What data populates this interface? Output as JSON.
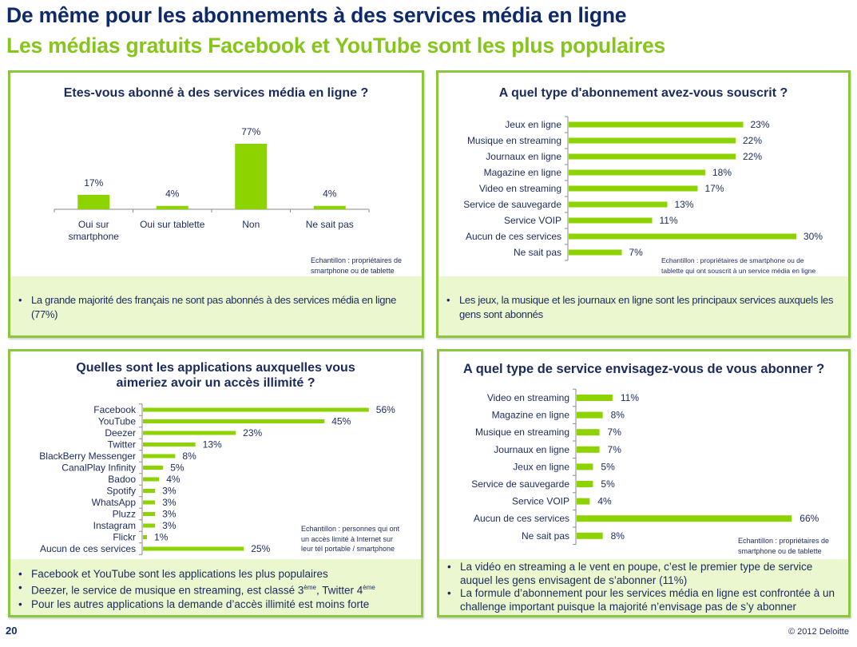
{
  "header": {
    "title": "De même pour les abonnements à des services média en ligne",
    "subtitle": "Les médias gratuits Facebook et YouTube sont les plus populaires"
  },
  "colors": {
    "bar": "#8cd300",
    "panel_border": "#8cc63f",
    "note_bg": "#eaf7cf",
    "title_blue": "#0f2a6b",
    "subtitle_green": "#86c51a"
  },
  "panels": {
    "top_left": {
      "sample": [
        "Echantillon : propriétaires de",
        "smartphone ou de tablette"
      ],
      "bullets": [
        "La grande majorité des français ne sont pas abonnés à des services média en ligne (77%)"
      ]
    },
    "top_right": {
      "sample": [
        "Echantillon : propriétaires de smartphone ou de",
        "tablette qui ont souscrit à un service média en ligne"
      ],
      "bullets": [
        "Les jeux, la musique et les journaux en ligne sont les principaux services auxquels les gens sont abonnés"
      ]
    },
    "bottom_left": {
      "sample": [
        "Echantillon : personnes qui ont",
        "un accès limité à Internet sur",
        "leur tél portable / smartphone"
      ],
      "bullets": [
        "Facebook et YouTube sont les applications les plus populaires",
        {
          "pre": "Deezer, le service de musique en streaming, est classé 3",
          "sup1": "ème",
          "mid": ", Twitter 4",
          "sup2": "ème"
        },
        "Pour les autres applications la demande d’accès illimité est moins forte"
      ]
    },
    "bottom_right": {
      "sample": [
        "Echantillon : propriétaires de",
        "smartphone ou de tablette"
      ],
      "bullets": [
        "La vidéo en streaming a le vent en poupe, c’est le premier type de service auquel les gens envisagent de s’abonner (11%)",
        "La formule d’abonnement pour les services média en ligne est confrontée à un challenge important puisque la majorité n’envisage pas de s’y abonner"
      ]
    }
  },
  "chart_data": [
    {
      "type": "bar",
      "title": "Etes-vous abonné à des services média en ligne ?",
      "categories": [
        "Oui sur smartphone",
        "Oui sur tablette",
        "Non",
        "Ne sait pas"
      ],
      "category_lines": [
        [
          "Oui sur",
          "smartphone"
        ],
        [
          "Oui sur tablette"
        ],
        [
          "Non"
        ],
        [
          "Ne sait pas"
        ]
      ],
      "values": [
        17,
        4,
        77,
        4
      ],
      "labels": [
        "17%",
        "4%",
        "77%",
        "4%"
      ],
      "unit": "%",
      "xlabel": "",
      "ylabel": "",
      "ylim": [
        0,
        77
      ],
      "grid": false,
      "legend": "none"
    },
    {
      "type": "bar",
      "orientation": "horizontal",
      "title": "A quel type d'abonnement avez-vous souscrit ?",
      "categories": [
        "Jeux en ligne",
        "Musique en streaming",
        "Journaux en ligne",
        "Magazine en ligne",
        "Video en streaming",
        "Service de sauvegarde",
        "Service VOIP",
        "Aucun de ces services",
        "Ne sait pas"
      ],
      "values": [
        23,
        22,
        22,
        18,
        17,
        13,
        11,
        30,
        7
      ],
      "labels": [
        "23%",
        "22%",
        "22%",
        "18%",
        "17%",
        "13%",
        "11%",
        "30%",
        "7%"
      ],
      "unit": "%",
      "xlim": [
        0,
        30
      ],
      "grid": false,
      "legend": "none"
    },
    {
      "type": "bar",
      "orientation": "horizontal",
      "title": "Quelles sont les applications auxquelles vous aimeriez avoir un accès illimité ?",
      "title_lines": [
        "Quelles sont les applications auxquelles vous",
        "aimeriez avoir un accès illimité ?"
      ],
      "categories": [
        "Facebook",
        "YouTube",
        "Deezer",
        "Twitter",
        "BlackBerry Messenger",
        "CanalPlay Infinity",
        "Badoo",
        "Spotify",
        "WhatsApp",
        "Pluzz",
        "Instagram",
        "Flickr",
        "Aucun de ces services"
      ],
      "values": [
        56,
        45,
        23,
        13,
        8,
        5,
        4,
        3,
        3,
        3,
        3,
        1,
        25
      ],
      "labels": [
        "56%",
        "45%",
        "23%",
        "13%",
        "8%",
        "5%",
        "4%",
        "3%",
        "3%",
        "3%",
        "3%",
        "1%",
        "25%"
      ],
      "unit": "%",
      "xlim": [
        0,
        56
      ],
      "grid": false,
      "legend": "none"
    },
    {
      "type": "bar",
      "orientation": "horizontal",
      "title": "A quel type de service envisagez-vous de vous abonner ?",
      "categories": [
        "Video en streaming",
        "Magazine en ligne",
        "Musique en streaming",
        "Journaux en ligne",
        "Jeux en ligne",
        "Service de sauvegarde",
        "Service VOIP",
        "Aucun de ces services",
        "Ne sait pas"
      ],
      "values": [
        11,
        8,
        7,
        7,
        5,
        5,
        4,
        66,
        8
      ],
      "labels": [
        "11%",
        "8%",
        "7%",
        "7%",
        "5%",
        "5%",
        "4%",
        "66%",
        "8%"
      ],
      "unit": "%",
      "xlim": [
        0,
        66
      ],
      "grid": false,
      "legend": "none"
    }
  ],
  "footer": {
    "page_number": "20",
    "copyright": "© 2012 Deloitte"
  }
}
